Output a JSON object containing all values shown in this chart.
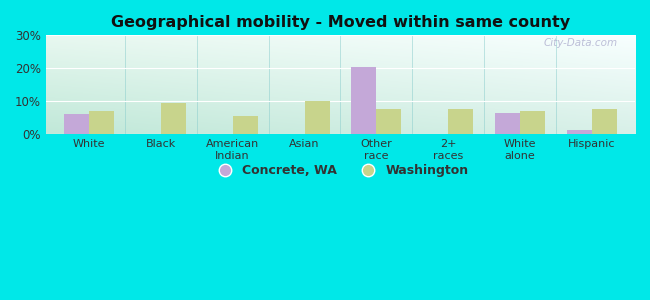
{
  "title": "Geographical mobility - Moved within same county",
  "categories": [
    "White",
    "Black",
    "American\nIndian",
    "Asian",
    "Other\nrace",
    "2+\nraces",
    "White\nalone",
    "Hispanic"
  ],
  "concrete_values": [
    6.0,
    0.0,
    0.0,
    0.0,
    20.5,
    0.0,
    6.5,
    1.2
  ],
  "washington_values": [
    7.0,
    9.5,
    5.5,
    10.0,
    7.5,
    7.5,
    7.0,
    7.5
  ],
  "concrete_color": "#c4a8d8",
  "washington_color": "#c8d48c",
  "background_color": "#00e8e8",
  "ylim": [
    0,
    30
  ],
  "yticks": [
    0,
    10,
    20,
    30
  ],
  "ytick_labels": [
    "0%",
    "10%",
    "20%",
    "30%"
  ],
  "bar_width": 0.35,
  "legend_labels": [
    "Concrete, WA",
    "Washington"
  ],
  "watermark": "City-Data.com",
  "grad_top_color": "#f0faff",
  "grad_bottom_left_color": "#c8eedd"
}
